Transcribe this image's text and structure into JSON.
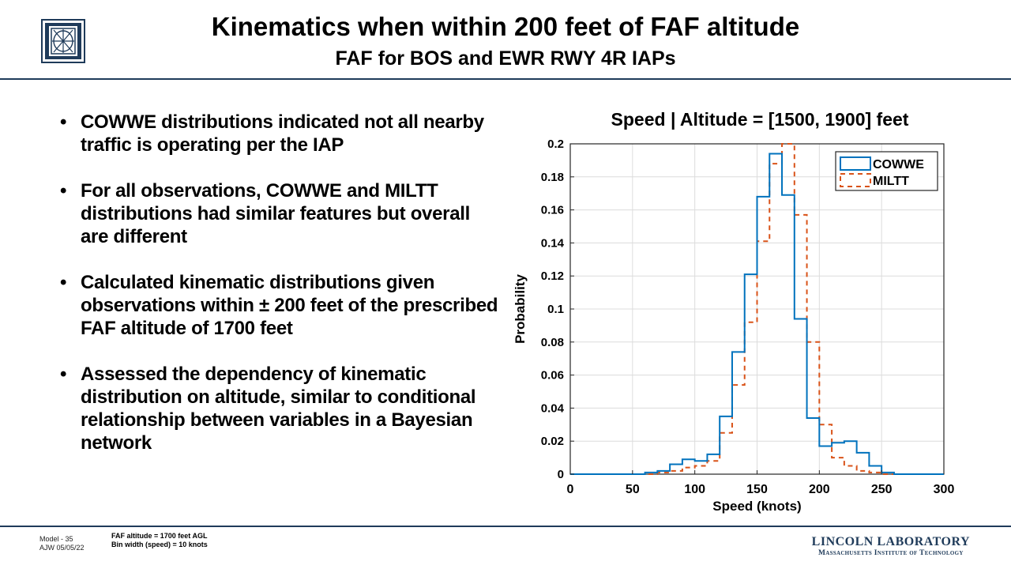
{
  "header": {
    "title": "Kinematics when within 200 feet of FAF altitude",
    "subtitle": "FAF for BOS and EWR RWY 4R IAPs"
  },
  "bullets": [
    "COWWE distributions indicated not all nearby traffic is operating per the IAP",
    "For all observations, COWWE and MILTT distributions had similar features but overall are different",
    "Calculated kinematic distributions given observations within ± 200 feet of the prescribed FAF altitude of 1700 feet",
    "Assessed the dependency of kinematic distribution on altitude, similar to conditional relationship between variables in a Bayesian network"
  ],
  "footer": {
    "slide_label": "Model - 35",
    "author_date": "AJW  05/05/22",
    "note1": "FAF altitude = 1700 feet AGL",
    "note2": "Bin width (speed) = 10 knots",
    "lab_name": "LINCOLN LABORATORY",
    "lab_sub": "Massachusetts Institute of Technology"
  },
  "colors": {
    "cowwe": "#0072BD",
    "miltt": "#D95319",
    "rule": "#1f3b5a"
  },
  "chart_data": {
    "type": "histogram",
    "title": "Speed | Altitude = [1500, 1900] feet",
    "xlabel": "Speed (knots)",
    "ylabel": "Probability",
    "xlim": [
      0,
      300
    ],
    "ylim": [
      0,
      0.2
    ],
    "x_ticks": [
      "0",
      "50",
      "100",
      "150",
      "200",
      "250",
      "300"
    ],
    "y_ticks": [
      "0",
      "0.02",
      "0.04",
      "0.06",
      "0.08",
      "0.1",
      "0.12",
      "0.14",
      "0.16",
      "0.18",
      "0.2"
    ],
    "grid": true,
    "legend_position": "top-right",
    "bin_width": 10,
    "bin_edges": [
      60,
      70,
      80,
      90,
      100,
      110,
      120,
      130,
      140,
      150,
      160,
      170,
      180,
      190,
      200,
      210,
      220,
      230,
      240,
      250
    ],
    "series": [
      {
        "name": "COWWE",
        "style": "solid",
        "values": [
          0.001,
          0.002,
          0.006,
          0.009,
          0.008,
          0.012,
          0.035,
          0.074,
          0.121,
          0.168,
          0.194,
          0.169,
          0.094,
          0.034,
          0.017,
          0.019,
          0.02,
          0.013,
          0.005,
          0.001
        ]
      },
      {
        "name": "MILTT",
        "style": "dashed",
        "values": [
          0.0,
          0.001,
          0.002,
          0.004,
          0.005,
          0.008,
          0.025,
          0.054,
          0.092,
          0.141,
          0.188,
          0.2,
          0.157,
          0.08,
          0.03,
          0.01,
          0.005,
          0.002,
          0.001,
          0.0
        ]
      }
    ]
  }
}
